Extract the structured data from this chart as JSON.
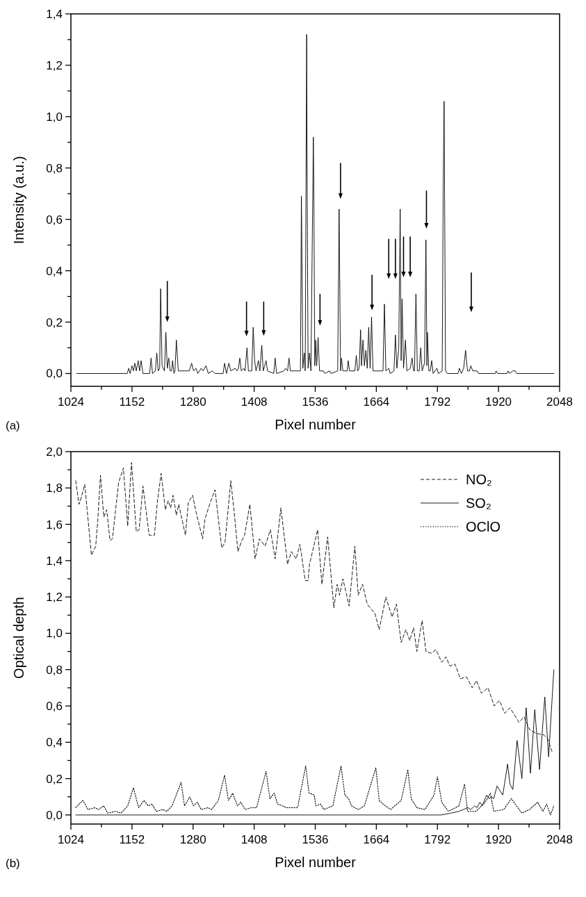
{
  "chart_data": [
    {
      "type": "line",
      "xlabel": "Pixel number",
      "ylabel": "Intensity (a.u.)",
      "annotations": [
        "(a)"
      ],
      "xlim": [
        1024,
        2048
      ],
      "ylim": [
        -0.05,
        1.4
      ],
      "xticks": [
        {
          "value": 1024,
          "label": "1024"
        },
        {
          "value": 1088,
          "label": null
        },
        {
          "value": 1152,
          "label": "1152"
        },
        {
          "value": 1216,
          "label": null
        },
        {
          "value": 1280,
          "label": "1280"
        },
        {
          "value": 1344,
          "label": null
        },
        {
          "value": 1408,
          "label": "1408"
        },
        {
          "value": 1472,
          "label": null
        },
        {
          "value": 1536,
          "label": "1536"
        },
        {
          "value": 1600,
          "label": null
        },
        {
          "value": 1664,
          "label": "1664"
        },
        {
          "value": 1728,
          "label": null
        },
        {
          "value": 1792,
          "label": "1792"
        },
        {
          "value": 1856,
          "label": null
        },
        {
          "value": 1920,
          "label": "1920"
        },
        {
          "value": 1984,
          "label": null
        },
        {
          "value": 2048,
          "label": "2048"
        }
      ],
      "yticks": [
        {
          "value": 0,
          "label": "0,0"
        },
        {
          "value": 0.1,
          "label": null
        },
        {
          "value": 0.2,
          "label": "0,2"
        },
        {
          "value": 0.3,
          "label": null
        },
        {
          "value": 0.4,
          "label": "0,4"
        },
        {
          "value": 0.5,
          "label": null
        },
        {
          "value": 0.6,
          "label": "0,6"
        },
        {
          "value": 0.7,
          "label": null
        },
        {
          "value": 0.8,
          "label": "0,8"
        },
        {
          "value": 0.9,
          "label": null
        },
        {
          "value": 1.0,
          "label": "1,0"
        },
        {
          "value": 1.1,
          "label": null
        },
        {
          "value": 1.2,
          "label": "1,2"
        },
        {
          "value": 1.3,
          "label": null
        },
        {
          "value": 1.4,
          "label": "1,4"
        }
      ],
      "grid": false,
      "series": [
        {
          "color": "#000000",
          "line_style": "solid",
          "x": [
            1036,
            1142,
            1145,
            1148,
            1152,
            1155,
            1158,
            1161,
            1165,
            1168,
            1171,
            1175,
            1189,
            1192,
            1195,
            1201,
            1204,
            1207,
            1210,
            1212,
            1215,
            1220,
            1223,
            1226,
            1229,
            1232,
            1235,
            1237,
            1240,
            1242,
            1245,
            1249,
            1272,
            1277,
            1281,
            1286,
            1290,
            1297,
            1301,
            1307,
            1312,
            1320,
            1326,
            1343,
            1346,
            1350,
            1355,
            1359,
            1368,
            1372,
            1375,
            1378,
            1381,
            1386,
            1389,
            1393,
            1396,
            1403,
            1406,
            1409,
            1412,
            1417,
            1420,
            1424,
            1427,
            1433,
            1436,
            1449,
            1452,
            1455,
            1470,
            1474,
            1478,
            1481,
            1484,
            1505,
            1507,
            1508,
            1510,
            1513,
            1515,
            1518,
            1519,
            1521,
            1524,
            1527,
            1532,
            1533,
            1535,
            1537,
            1539,
            1542,
            1545,
            1553,
            1556,
            1566,
            1569,
            1583,
            1586,
            1589,
            1591,
            1594,
            1603,
            1605,
            1608,
            1619,
            1622,
            1625,
            1628,
            1631,
            1633,
            1636,
            1639,
            1642,
            1645,
            1648,
            1651,
            1654,
            1657,
            1678,
            1681,
            1684,
            1690,
            1693,
            1701,
            1704,
            1707,
            1711,
            1714,
            1716,
            1718,
            1721,
            1725,
            1728,
            1735,
            1739,
            1742,
            1744,
            1747,
            1750,
            1754,
            1757,
            1760,
            1765,
            1768,
            1770,
            1771,
            1774,
            1777,
            1780,
            1783,
            1791,
            1794,
            1802,
            1804,
            1806,
            1809,
            1813,
            1835,
            1838,
            1842,
            1847,
            1851,
            1855,
            1859,
            1862,
            1866,
            1875,
            1878,
            1913,
            1915,
            1918,
            1938,
            1940,
            1943,
            1950,
            1955,
            1958,
            2036
          ],
          "values": [
            0,
            0,
            0.02,
            0,
            0.03,
            0.01,
            0.04,
            0.01,
            0.05,
            0.01,
            0.05,
            0,
            0,
            0.06,
            0,
            0.01,
            0.08,
            0.01,
            0.02,
            0.33,
            0.03,
            0.01,
            0.16,
            0.02,
            0.06,
            0.01,
            0.01,
            0.05,
            0,
            0.01,
            0.13,
            0.01,
            0.01,
            0.04,
            0.01,
            0.02,
            0,
            0.02,
            0.01,
            0.03,
            0,
            0.01,
            0,
            0,
            0.04,
            0,
            0.04,
            0.01,
            0.02,
            0.01,
            0.02,
            0.06,
            0.01,
            0.02,
            0.01,
            0.1,
            0.01,
            0.01,
            0.18,
            0.05,
            0.01,
            0.05,
            0.01,
            0.11,
            0.01,
            0.05,
            0.01,
            0,
            0.06,
            0,
            0.01,
            0.02,
            0.01,
            0.06,
            0.01,
            0.01,
            0.69,
            0.48,
            0.02,
            0.08,
            0.01,
            1.32,
            0.77,
            0.02,
            0.08,
            0.01,
            0.92,
            0.74,
            0.03,
            0.13,
            0.03,
            0.14,
            0.01,
            0.01,
            0,
            0.01,
            0,
            0.01,
            0.64,
            0.01,
            0.06,
            0.01,
            0.01,
            0.05,
            0.01,
            0.01,
            0.07,
            0.01,
            0.02,
            0.17,
            0.03,
            0.13,
            0.03,
            0.09,
            0.02,
            0.18,
            0.02,
            0.22,
            0.01,
            0.01,
            0.27,
            0.01,
            0.02,
            0,
            0.01,
            0.15,
            0.02,
            0.1,
            0.64,
            0.05,
            0.29,
            0.02,
            0.13,
            0.01,
            0.02,
            0.06,
            0.01,
            0.01,
            0.31,
            0.01,
            0.01,
            0.1,
            0.01,
            0.04,
            0.52,
            0.03,
            0.16,
            0.01,
            0.01,
            0.05,
            0,
            0.02,
            0,
            0.01,
            0.69,
            1.06,
            0.01,
            0,
            0,
            0.02,
            0,
            0.02,
            0.09,
            0.01,
            0.01,
            0.03,
            0.01,
            0.01,
            0,
            0,
            0.01,
            0,
            0,
            0.01,
            0,
            0.01,
            0.01,
            0,
            0
          ]
        }
      ]
    },
    {
      "type": "line",
      "xlabel": "Pixel number",
      "ylabel": "Optical depth",
      "annotations": [
        "(b)"
      ],
      "xlim": [
        1024,
        2048
      ],
      "ylim": [
        -0.05,
        2.0
      ],
      "xticks": [
        {
          "value": 1024,
          "label": "1024"
        },
        {
          "value": 1088,
          "label": null
        },
        {
          "value": 1152,
          "label": "1152"
        },
        {
          "value": 1216,
          "label": null
        },
        {
          "value": 1280,
          "label": "1280"
        },
        {
          "value": 1344,
          "label": null
        },
        {
          "value": 1408,
          "label": "1408"
        },
        {
          "value": 1472,
          "label": null
        },
        {
          "value": 1536,
          "label": "1536"
        },
        {
          "value": 1600,
          "label": null
        },
        {
          "value": 1664,
          "label": "1664"
        },
        {
          "value": 1728,
          "label": null
        },
        {
          "value": 1792,
          "label": "1792"
        },
        {
          "value": 1856,
          "label": null
        },
        {
          "value": 1920,
          "label": "1920"
        },
        {
          "value": 1984,
          "label": null
        },
        {
          "value": 2048,
          "label": "2048"
        }
      ],
      "yticks": [
        {
          "value": 0,
          "label": "0,0"
        },
        {
          "value": 0.1,
          "label": null
        },
        {
          "value": 0.2,
          "label": "0,2"
        },
        {
          "value": 0.3,
          "label": null
        },
        {
          "value": 0.4,
          "label": "0,4"
        },
        {
          "value": 0.5,
          "label": null
        },
        {
          "value": 0.6,
          "label": "0,6"
        },
        {
          "value": 0.7,
          "label": null
        },
        {
          "value": 0.8,
          "label": "0,8"
        },
        {
          "value": 0.9,
          "label": null
        },
        {
          "value": 1.0,
          "label": "1,0"
        },
        {
          "value": 1.1,
          "label": null
        },
        {
          "value": 1.2,
          "label": "1,2"
        },
        {
          "value": 1.3,
          "label": null
        },
        {
          "value": 1.4,
          "label": "1,4"
        },
        {
          "value": 1.5,
          "label": null
        },
        {
          "value": 1.6,
          "label": "1,6"
        },
        {
          "value": 1.7,
          "label": null
        },
        {
          "value": 1.8,
          "label": "1,8"
        },
        {
          "value": 1.9,
          "label": null
        },
        {
          "value": 2.0,
          "label": "2,0"
        }
      ],
      "grid": false,
      "legend": "top right",
      "series": [
        {
          "name": "NO₂",
          "color": "#000000",
          "line_style": "dashed",
          "x": [
            1034,
            1041,
            1046,
            1053,
            1067,
            1076,
            1080,
            1086,
            1093,
            1099,
            1106,
            1111,
            1124,
            1134,
            1143,
            1151,
            1161,
            1167,
            1175,
            1188,
            1199,
            1205,
            1213,
            1222,
            1228,
            1233,
            1238,
            1245,
            1250,
            1264,
            1270,
            1279,
            1286,
            1300,
            1305,
            1316,
            1326,
            1340,
            1347,
            1359,
            1366,
            1374,
            1382,
            1388,
            1399,
            1410,
            1419,
            1431,
            1442,
            1452,
            1464,
            1478,
            1486,
            1496,
            1504,
            1515,
            1521,
            1524,
            1541,
            1550,
            1562,
            1575,
            1582,
            1587,
            1594,
            1607,
            1619,
            1626,
            1635,
            1645,
            1651,
            1661,
            1670,
            1684,
            1697,
            1706,
            1716,
            1726,
            1734,
            1742,
            1749,
            1760,
            1768,
            1779,
            1789,
            1801,
            1810,
            1818,
            1829,
            1840,
            1853,
            1865,
            1874,
            1884,
            1898,
            1911,
            1922,
            1933,
            1944,
            1963,
            1974,
            1985,
            1998,
            2015,
            2023,
            2032
          ],
          "values": [
            1.84,
            1.71,
            1.75,
            1.82,
            1.43,
            1.48,
            1.61,
            1.87,
            1.64,
            1.68,
            1.51,
            1.52,
            1.83,
            1.91,
            1.59,
            1.94,
            1.56,
            1.57,
            1.81,
            1.54,
            1.54,
            1.72,
            1.88,
            1.68,
            1.73,
            1.69,
            1.76,
            1.65,
            1.71,
            1.54,
            1.72,
            1.76,
            1.67,
            1.52,
            1.63,
            1.72,
            1.79,
            1.47,
            1.5,
            1.84,
            1.67,
            1.45,
            1.51,
            1.54,
            1.71,
            1.41,
            1.52,
            1.48,
            1.57,
            1.41,
            1.69,
            1.38,
            1.45,
            1.41,
            1.49,
            1.29,
            1.29,
            1.38,
            1.57,
            1.27,
            1.53,
            1.14,
            1.27,
            1.21,
            1.3,
            1.15,
            1.48,
            1.21,
            1.27,
            1.16,
            1.14,
            1.11,
            1.02,
            1.2,
            1.09,
            1.16,
            0.95,
            1.02,
            0.96,
            1.03,
            0.9,
            1.07,
            0.9,
            0.89,
            0.91,
            0.84,
            0.87,
            0.82,
            0.83,
            0.75,
            0.76,
            0.7,
            0.74,
            0.67,
            0.7,
            0.6,
            0.63,
            0.56,
            0.59,
            0.51,
            0.54,
            0.47,
            0.45,
            0.44,
            0.42,
            0.35
          ]
        },
        {
          "name": "SO₂",
          "color": "#000000",
          "line_style": "solid",
          "x": [
            1034,
            1100,
            1771,
            1800,
            1820,
            1837,
            1856,
            1862,
            1870,
            1875,
            1881,
            1886,
            1895,
            1900,
            1906,
            1910,
            1917,
            1924,
            1929,
            1939,
            1944,
            1950,
            1959,
            1969,
            1978,
            1987,
            1996,
            2006,
            2017,
            2025,
            2036
          ],
          "values": [
            0,
            0,
            0,
            0,
            0.01,
            0.02,
            0.04,
            0.03,
            0.05,
            0.04,
            0.07,
            0.05,
            0.11,
            0.09,
            0.1,
            0.09,
            0.16,
            0.13,
            0.11,
            0.28,
            0.17,
            0.14,
            0.41,
            0.2,
            0.59,
            0.23,
            0.58,
            0.25,
            0.65,
            0.32,
            0.8
          ]
        },
        {
          "name": "OClO",
          "color": "#000000",
          "line_style": "dotted",
          "x": [
            1034,
            1049,
            1060,
            1074,
            1082,
            1093,
            1101,
            1118,
            1129,
            1143,
            1155,
            1166,
            1177,
            1186,
            1194,
            1203,
            1217,
            1225,
            1236,
            1255,
            1262,
            1273,
            1281,
            1289,
            1297,
            1311,
            1319,
            1333,
            1346,
            1354,
            1363,
            1373,
            1380,
            1389,
            1402,
            1413,
            1433,
            1441,
            1450,
            1457,
            1467,
            1476,
            1499,
            1516,
            1523,
            1534,
            1537,
            1547,
            1554,
            1573,
            1590,
            1598,
            1606,
            1612,
            1626,
            1639,
            1663,
            1670,
            1678,
            1694,
            1716,
            1730,
            1737,
            1749,
            1766,
            1785,
            1792,
            1801,
            1815,
            1837,
            1849,
            1855,
            1873,
            1892,
            1903,
            1910,
            1931,
            1947,
            1955,
            1969,
            1985,
            2002,
            2013,
            2021,
            2029,
            2036
          ],
          "values": [
            0.04,
            0.08,
            0.03,
            0.04,
            0.03,
            0.05,
            0.01,
            0.02,
            0.01,
            0.05,
            0.15,
            0.04,
            0.08,
            0.05,
            0.06,
            0.02,
            0.03,
            0.02,
            0.05,
            0.18,
            0.05,
            0.1,
            0.05,
            0.07,
            0.03,
            0.04,
            0.03,
            0.08,
            0.22,
            0.08,
            0.12,
            0.05,
            0.07,
            0.03,
            0.04,
            0.04,
            0.24,
            0.09,
            0.12,
            0.06,
            0.05,
            0.04,
            0.04,
            0.27,
            0.12,
            0.11,
            0.05,
            0.06,
            0.03,
            0.05,
            0.27,
            0.11,
            0.09,
            0.05,
            0.03,
            0.05,
            0.26,
            0.08,
            0.06,
            0.03,
            0.08,
            0.25,
            0.09,
            0.04,
            0.03,
            0.11,
            0.21,
            0.07,
            0.02,
            0.05,
            0.17,
            0.02,
            0.02,
            0.07,
            0.12,
            0.02,
            0.03,
            0.09,
            0.06,
            0.01,
            0.03,
            0.07,
            0.02,
            0.06,
            0.0,
            0.05
          ]
        }
      ]
    }
  ]
}
